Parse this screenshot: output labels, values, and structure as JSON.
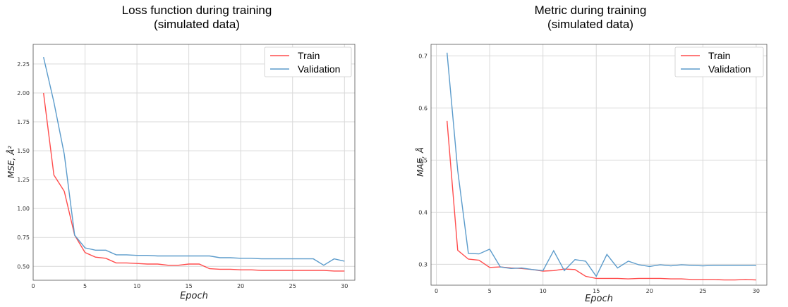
{
  "colors": {
    "train": "#ff4d4d",
    "validation": "#5b9bcb"
  },
  "chart_data": [
    {
      "type": "line",
      "title": "Loss function during training\n(simulated data)",
      "xlabel": "Epoch",
      "ylabel": "MSE, Å²",
      "xlim": [
        0,
        31
      ],
      "ylim": [
        0.38,
        2.42
      ],
      "xticks": [
        0,
        5,
        10,
        15,
        20,
        25,
        30
      ],
      "yticks": [
        0.5,
        0.75,
        1.0,
        1.25,
        1.5,
        1.75,
        2.0,
        2.25
      ],
      "ytick_labels": [
        "0.50",
        "0.75",
        "1.00",
        "1.25",
        "1.50",
        "1.75",
        "2.00",
        "2.25"
      ],
      "grid": true,
      "legend": "top-right",
      "x": [
        1,
        2,
        3,
        4,
        5,
        6,
        7,
        8,
        9,
        10,
        11,
        12,
        13,
        14,
        15,
        16,
        17,
        18,
        19,
        20,
        21,
        22,
        23,
        24,
        25,
        26,
        27,
        28,
        29,
        30
      ],
      "series": [
        {
          "name": "Train",
          "color": "#ff4d4d",
          "values": [
            2.0,
            1.29,
            1.15,
            0.77,
            0.62,
            0.58,
            0.57,
            0.53,
            0.53,
            0.525,
            0.52,
            0.52,
            0.51,
            0.51,
            0.52,
            0.52,
            0.48,
            0.475,
            0.475,
            0.47,
            0.47,
            0.465,
            0.465,
            0.465,
            0.465,
            0.465,
            0.465,
            0.465,
            0.46,
            0.46
          ]
        },
        {
          "name": "Validation",
          "color": "#5b9bcb",
          "values": [
            2.31,
            1.92,
            1.47,
            0.77,
            0.66,
            0.64,
            0.64,
            0.6,
            0.6,
            0.595,
            0.595,
            0.59,
            0.59,
            0.59,
            0.59,
            0.59,
            0.59,
            0.575,
            0.575,
            0.57,
            0.57,
            0.565,
            0.565,
            0.565,
            0.565,
            0.565,
            0.565,
            0.51,
            0.565,
            0.545
          ]
        }
      ]
    },
    {
      "type": "line",
      "title": "Metric during training\n(simulated data)",
      "xlabel": "Epoch",
      "ylabel": "MAE, Å",
      "xlim": [
        -0.5,
        31
      ],
      "ylim": [
        0.26,
        0.722
      ],
      "xticks": [
        0,
        5,
        10,
        15,
        20,
        25,
        30
      ],
      "yticks": [
        0.3,
        0.4,
        0.5,
        0.6,
        0.7
      ],
      "ytick_labels": [
        "0.3",
        "0.4",
        "0.5",
        "0.6",
        "0.7"
      ],
      "grid": true,
      "legend": "top-right",
      "x": [
        1,
        2,
        3,
        4,
        5,
        6,
        7,
        8,
        9,
        10,
        11,
        12,
        13,
        14,
        15,
        16,
        17,
        18,
        19,
        20,
        21,
        22,
        23,
        24,
        25,
        26,
        27,
        28,
        29,
        30
      ],
      "series": [
        {
          "name": "Train",
          "color": "#ff4d4d",
          "values": [
            0.575,
            0.327,
            0.31,
            0.308,
            0.294,
            0.295,
            0.293,
            0.292,
            0.29,
            0.287,
            0.288,
            0.291,
            0.29,
            0.277,
            0.273,
            0.273,
            0.273,
            0.272,
            0.273,
            0.273,
            0.273,
            0.272,
            0.272,
            0.271,
            0.271,
            0.271,
            0.27,
            0.27,
            0.271,
            0.27
          ]
        },
        {
          "name": "Validation",
          "color": "#5b9bcb",
          "values": [
            0.706,
            0.48,
            0.321,
            0.32,
            0.329,
            0.295,
            0.292,
            0.293,
            0.29,
            0.288,
            0.326,
            0.288,
            0.309,
            0.306,
            0.277,
            0.319,
            0.293,
            0.306,
            0.299,
            0.296,
            0.299,
            0.297,
            0.299,
            0.298,
            0.297,
            0.298,
            0.298,
            0.298,
            0.298,
            0.298
          ]
        }
      ]
    }
  ]
}
